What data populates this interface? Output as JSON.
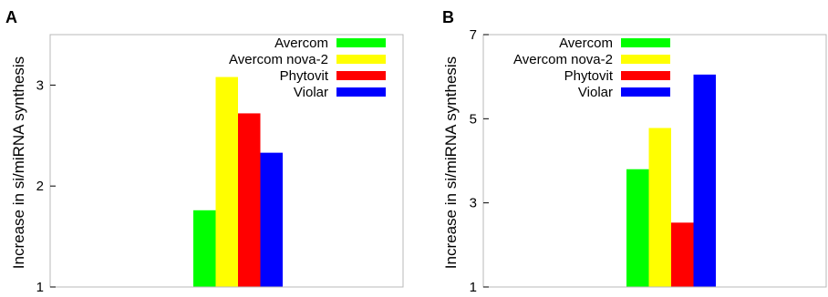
{
  "chart_data": [
    {
      "type": "bar",
      "panel_label": "A",
      "title": "",
      "xlabel": "",
      "ylabel": "Increase in si/miRNA synthesis",
      "ylim": [
        1,
        3.5
      ],
      "yticks": [
        1,
        2,
        3
      ],
      "grid": false,
      "legend_position": "top-right",
      "series": [
        {
          "name": "Avercom",
          "color": "#00ff00",
          "values": [
            1.76
          ]
        },
        {
          "name": "Avercom nova-2",
          "color": "#ffff00",
          "values": [
            3.08
          ]
        },
        {
          "name": "Phytovit",
          "color": "#ff0000",
          "values": [
            2.72
          ]
        },
        {
          "name": "Violar",
          "color": "#0000ff",
          "values": [
            2.33
          ]
        }
      ]
    },
    {
      "type": "bar",
      "panel_label": "B",
      "title": "",
      "xlabel": "",
      "ylabel": "Increase in si/miRNA synthesis",
      "ylim": [
        1,
        7
      ],
      "yticks": [
        1,
        3,
        5,
        7
      ],
      "grid": false,
      "legend_position": "top-right",
      "series": [
        {
          "name": "Avercom",
          "color": "#00ff00",
          "values": [
            3.8
          ]
        },
        {
          "name": "Avercom nova-2",
          "color": "#ffff00",
          "values": [
            4.78
          ]
        },
        {
          "name": "Phytovit",
          "color": "#ff0000",
          "values": [
            2.53
          ]
        },
        {
          "name": "Violar",
          "color": "#0000ff",
          "values": [
            6.05
          ]
        }
      ]
    }
  ]
}
